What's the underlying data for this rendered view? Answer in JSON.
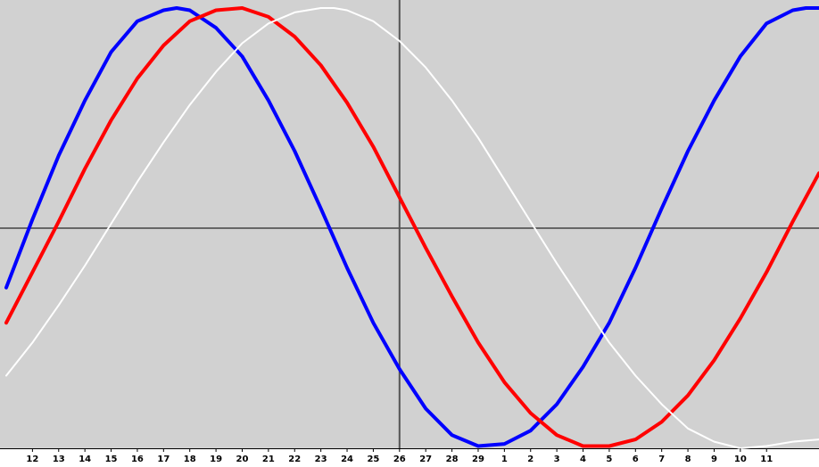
{
  "chart_data": {
    "type": "line",
    "title": "",
    "xlabel": "",
    "ylabel": "",
    "xlim": [
      11,
      42
    ],
    "ylim": [
      -100,
      100
    ],
    "grid": false,
    "legend": "none",
    "background_color": "#d1d1d1",
    "axis_color": "#666666",
    "cursor_line_color": "#555555",
    "tick_labels": [
      "12",
      "13",
      "14",
      "15",
      "16",
      "17",
      "18",
      "19",
      "20",
      "21",
      "22",
      "23",
      "24",
      "25",
      "26",
      "27",
      "28",
      "29",
      "1",
      "2",
      "3",
      "4",
      "5",
      "6",
      "7",
      "8",
      "9",
      "10",
      "11"
    ],
    "cursor_day": "26",
    "series": [
      {
        "color": "#0000ff",
        "x": [
          11,
          12,
          13,
          14,
          15,
          16,
          17,
          17.5,
          18,
          19,
          20,
          21,
          22,
          23,
          24,
          25,
          26,
          27,
          28,
          29,
          30,
          31,
          32,
          33,
          34,
          35,
          36,
          37,
          38,
          39,
          40,
          41,
          41.5,
          42
        ],
        "y": [
          -27,
          4,
          33,
          58,
          80,
          94,
          99,
          100,
          99,
          91,
          78,
          58,
          35,
          9,
          -18,
          -43,
          -64,
          -82,
          -94,
          -99,
          -98,
          -92,
          -80,
          -63,
          -43,
          -18,
          9,
          35,
          58,
          78,
          93,
          99,
          100,
          100
        ]
      },
      {
        "color": "#ff0000",
        "x": [
          11,
          12,
          13,
          14,
          15,
          16,
          17,
          18,
          19,
          20,
          21,
          22,
          23,
          24,
          25,
          26,
          27,
          28,
          29,
          30,
          31,
          32,
          33,
          34,
          35,
          36,
          37,
          38,
          39,
          40,
          41,
          42
        ],
        "y": [
          -43,
          -20,
          3,
          27,
          49,
          68,
          83,
          94,
          99,
          100,
          96,
          87,
          74,
          57,
          37,
          14,
          -9,
          -31,
          -52,
          -70,
          -84,
          -94,
          -99,
          -99,
          -96,
          -88,
          -76,
          -60,
          -41,
          -20,
          3,
          25
        ]
      },
      {
        "color": "#ffffff",
        "x": [
          11,
          12,
          13,
          14,
          15,
          16,
          17,
          18,
          19,
          20,
          21,
          22,
          23,
          23.5,
          24,
          25,
          26,
          27,
          28,
          29,
          30,
          31,
          32,
          33,
          34,
          35,
          36,
          37,
          38,
          39,
          40,
          41,
          42
        ],
        "y": [
          -67,
          -52,
          -35,
          -17,
          2,
          21,
          39,
          56,
          71,
          84,
          93,
          98,
          100,
          100,
          99,
          94,
          85,
          73,
          58,
          41,
          22,
          3,
          -16,
          -34,
          -52,
          -67,
          -80,
          -91,
          -97,
          -100,
          -99,
          -97,
          -96
        ]
      }
    ]
  }
}
